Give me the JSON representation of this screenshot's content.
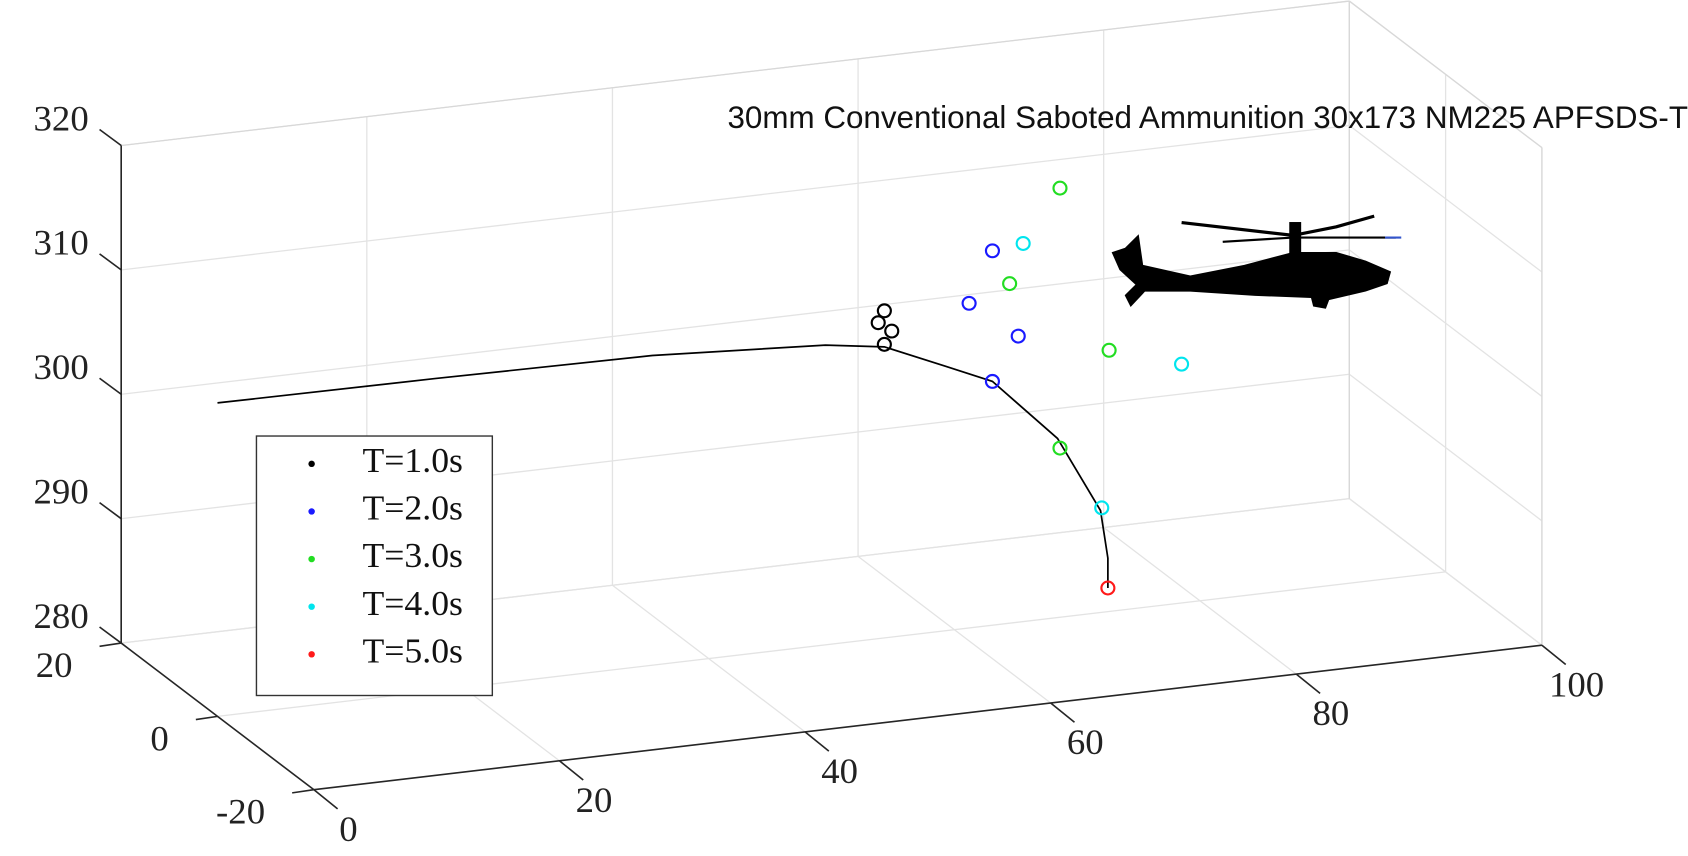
{
  "chart_data": {
    "type": "scatter3d",
    "title": "30mm Conventional Saboted Ammunition 30x173 NM225 APFSDS-T",
    "xlim": [
      0,
      100
    ],
    "ylim": [
      -20,
      20
    ],
    "zlim": [
      280,
      320
    ],
    "xticks": [
      0,
      20,
      40,
      60,
      80,
      100
    ],
    "yticks": [
      -20,
      0,
      20
    ],
    "zticks": [
      280,
      290,
      300,
      310,
      320
    ],
    "grid": true,
    "legend": "lower left",
    "trajectory": {
      "color": "#000000",
      "x": [
        0,
        17.7,
        35.4,
        49.5,
        54.3,
        59.2,
        63.1,
        68.4,
        71.9,
        72.5,
        72.5
      ],
      "y": [
        0,
        0,
        0,
        0,
        0,
        0,
        0,
        0,
        0,
        0,
        0
      ],
      "z": [
        305.2,
        305.1,
        304.9,
        304.1,
        303.4,
        301.3,
        299.6,
        294.4,
        288.2,
        284.3,
        281.9
      ]
    },
    "series": [
      {
        "name": "T=1.0s",
        "color": "#000000",
        "x": [
          54.3,
          53.8,
          54.9,
          54.3
        ],
        "y": [
          0,
          0,
          0,
          0
        ],
        "z": [
          306.3,
          305.4,
          304.6,
          303.6
        ]
      },
      {
        "name": "T=2.0s",
        "color": "#1a1aff",
        "x": [
          63.1,
          61.2,
          65.2,
          63.1
        ],
        "y": [
          0,
          0,
          0,
          0
        ],
        "z": [
          310.1,
          306.1,
          303.0,
          299.6
        ]
      },
      {
        "name": "T=3.0s",
        "color": "#22dd22",
        "x": [
          68.6,
          64.5,
          72.6,
          68.6
        ],
        "y": [
          0,
          0,
          0,
          0
        ],
        "z": [
          314.5,
          307.3,
          301.0,
          293.6
        ]
      },
      {
        "name": "T=4.0s",
        "color": "#00e5ee",
        "x": [
          65.6,
          78.5,
          72.0
        ],
        "y": [
          0,
          0,
          0
        ],
        "z": [
          310.4,
          299.2,
          288.4
        ]
      },
      {
        "name": "T=5.0s",
        "color": "#ff1a1a",
        "x": [
          72.5
        ],
        "y": [
          0
        ],
        "z": [
          281.9
        ]
      }
    ]
  }
}
